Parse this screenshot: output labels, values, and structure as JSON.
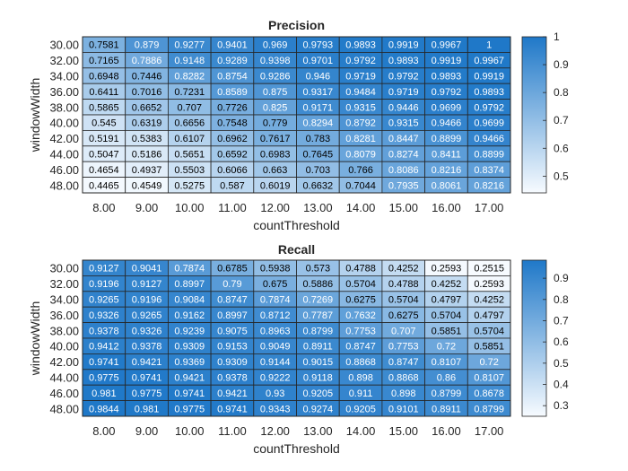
{
  "chart_data": [
    {
      "type": "heatmap",
      "title": "Precision",
      "xlabel": "countThreshold",
      "ylabel": "windowWidth",
      "x_categories": [
        "8.00",
        "9.00",
        "10.00",
        "11.00",
        "12.00",
        "13.00",
        "14.00",
        "15.00",
        "16.00",
        "17.00"
      ],
      "y_categories": [
        "30.00",
        "32.00",
        "34.00",
        "36.00",
        "38.00",
        "40.00",
        "42.00",
        "44.00",
        "46.00",
        "48.00"
      ],
      "values": [
        [
          "0.7581",
          "0.879",
          "0.9277",
          "0.9401",
          "0.969",
          "0.9793",
          "0.9893",
          "0.9919",
          "0.9967",
          "1"
        ],
        [
          "0.7165",
          "0.7886",
          "0.9148",
          "0.9289",
          "0.9398",
          "0.9701",
          "0.9792",
          "0.9893",
          "0.9919",
          "0.9967"
        ],
        [
          "0.6948",
          "0.7446",
          "0.8282",
          "0.8754",
          "0.9286",
          "0.946",
          "0.9719",
          "0.9792",
          "0.9893",
          "0.9919"
        ],
        [
          "0.6411",
          "0.7016",
          "0.7231",
          "0.8589",
          "0.875",
          "0.9317",
          "0.9484",
          "0.9719",
          "0.9792",
          "0.9893"
        ],
        [
          "0.5865",
          "0.6652",
          "0.707",
          "0.7726",
          "0.825",
          "0.9171",
          "0.9315",
          "0.9446",
          "0.9699",
          "0.9792"
        ],
        [
          "0.545",
          "0.6319",
          "0.6656",
          "0.7548",
          "0.779",
          "0.8294",
          "0.8792",
          "0.9315",
          "0.9466",
          "0.9699"
        ],
        [
          "0.5191",
          "0.5383",
          "0.6107",
          "0.6962",
          "0.7617",
          "0.783",
          "0.8281",
          "0.8447",
          "0.8899",
          "0.9466"
        ],
        [
          "0.5047",
          "0.5186",
          "0.5651",
          "0.6592",
          "0.6983",
          "0.7645",
          "0.8079",
          "0.8274",
          "0.8411",
          "0.8899"
        ],
        [
          "0.4654",
          "0.4937",
          "0.5503",
          "0.6066",
          "0.663",
          "0.703",
          "0.766",
          "0.8086",
          "0.8216",
          "0.8374"
        ],
        [
          "0.4465",
          "0.4549",
          "0.5275",
          "0.587",
          "0.6019",
          "0.6632",
          "0.7044",
          "0.7935",
          "0.8061",
          "0.8216"
        ]
      ],
      "color_range": [
        0.44,
        1.0
      ],
      "colorbar_ticks": [
        "0.5",
        "0.6",
        "0.7",
        "0.8",
        "0.9",
        "1"
      ],
      "colorbar_tick_values": [
        0.5,
        0.6,
        0.7,
        0.8,
        0.9,
        1.0
      ],
      "colormap": [
        "#f7fbff",
        "#1f78c8"
      ]
    },
    {
      "type": "heatmap",
      "title": "Recall",
      "xlabel": "countThreshold",
      "ylabel": "windowWidth",
      "x_categories": [
        "8.00",
        "9.00",
        "10.00",
        "11.00",
        "12.00",
        "13.00",
        "14.00",
        "15.00",
        "16.00",
        "17.00"
      ],
      "y_categories": [
        "30.00",
        "32.00",
        "34.00",
        "36.00",
        "38.00",
        "40.00",
        "42.00",
        "44.00",
        "46.00",
        "48.00"
      ],
      "values": [
        [
          "0.9127",
          "0.9041",
          "0.7874",
          "0.6785",
          "0.5938",
          "0.573",
          "0.4788",
          "0.4252",
          "0.2593",
          "0.2515"
        ],
        [
          "0.9196",
          "0.9127",
          "0.8997",
          "0.79",
          "0.675",
          "0.5886",
          "0.5704",
          "0.4788",
          "0.4252",
          "0.2593"
        ],
        [
          "0.9265",
          "0.9196",
          "0.9084",
          "0.8747",
          "0.7874",
          "0.7269",
          "0.6275",
          "0.5704",
          "0.4797",
          "0.4252"
        ],
        [
          "0.9326",
          "0.9265",
          "0.9162",
          "0.8997",
          "0.8712",
          "0.7787",
          "0.7632",
          "0.6275",
          "0.5704",
          "0.4797"
        ],
        [
          "0.9378",
          "0.9326",
          "0.9239",
          "0.9075",
          "0.8963",
          "0.8799",
          "0.7753",
          "0.707",
          "0.5851",
          "0.5704"
        ],
        [
          "0.9412",
          "0.9378",
          "0.9309",
          "0.9153",
          "0.9049",
          "0.8911",
          "0.8747",
          "0.7753",
          "0.72",
          "0.5851"
        ],
        [
          "0.9741",
          "0.9421",
          "0.9369",
          "0.9309",
          "0.9144",
          "0.9015",
          "0.8868",
          "0.8747",
          "0.8107",
          "0.72"
        ],
        [
          "0.9775",
          "0.9741",
          "0.9421",
          "0.9378",
          "0.9222",
          "0.9118",
          "0.898",
          "0.8868",
          "0.86",
          "0.8107"
        ],
        [
          "0.981",
          "0.9775",
          "0.9741",
          "0.9421",
          "0.93",
          "0.9205",
          "0.911",
          "0.898",
          "0.8799",
          "0.8678"
        ],
        [
          "0.9844",
          "0.981",
          "0.9775",
          "0.9741",
          "0.9343",
          "0.9274",
          "0.9205",
          "0.9101",
          "0.8911",
          "0.8799"
        ]
      ],
      "color_range": [
        0.25,
        0.985
      ],
      "colorbar_ticks": [
        "0.3",
        "0.4",
        "0.5",
        "0.6",
        "0.7",
        "0.8",
        "0.9"
      ],
      "colorbar_tick_values": [
        0.3,
        0.4,
        0.5,
        0.6,
        0.7,
        0.8,
        0.9
      ],
      "colormap": [
        "#f7fbff",
        "#1f78c8"
      ]
    }
  ]
}
